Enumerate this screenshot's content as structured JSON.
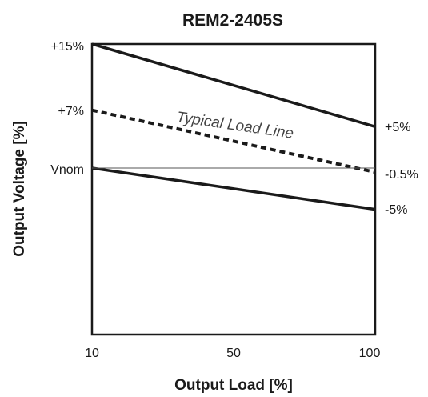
{
  "chart_data": {
    "type": "line",
    "title": "REM2-2405S",
    "xlabel": "Output Load [%]",
    "ylabel": "Output Voltage [%]",
    "xticks": [
      "10",
      "50",
      "100"
    ],
    "left_labels": {
      "upper": "+15%",
      "typical": "+7%",
      "nominal": "Vnom"
    },
    "right_labels": {
      "upper": "+5%",
      "typical": "-0.5%",
      "lower": "-5%"
    },
    "annotation": "Typical Load Line",
    "xlim": [
      10,
      100
    ],
    "ylim": [
      -55,
      15
    ],
    "grid": false,
    "series": [
      {
        "x": [
          10,
          100
        ],
        "values": [
          15,
          5
        ],
        "style": "solid-bold"
      },
      {
        "x": [
          10,
          100
        ],
        "values": [
          7,
          -0.5
        ],
        "style": "dashed-bold"
      },
      {
        "x": [
          10,
          100
        ],
        "values": [
          0,
          -5
        ],
        "style": "solid-bold"
      },
      {
        "x": [
          10,
          100
        ],
        "values": [
          0,
          0
        ],
        "style": "thin-reference"
      }
    ]
  }
}
